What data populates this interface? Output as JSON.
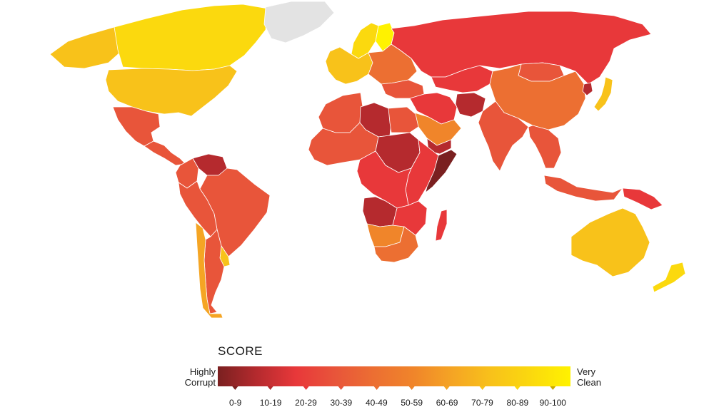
{
  "legend": {
    "title": "SCORE",
    "low_label": "Highly Corrupt",
    "high_label": "Very Clean",
    "gradient_colors": [
      "#7a2020",
      "#b52a2e",
      "#e8383a",
      "#e8553a",
      "#ec6f32",
      "#f0852a",
      "#f5a524",
      "#f8c21a",
      "#fbd90e",
      "#fff200"
    ],
    "bins": [
      {
        "label": "0-9",
        "color": "#7a2020"
      },
      {
        "label": "10-19",
        "color": "#b52a2e"
      },
      {
        "label": "20-29",
        "color": "#e8383a"
      },
      {
        "label": "30-39",
        "color": "#e8553a"
      },
      {
        "label": "40-49",
        "color": "#ec6f32"
      },
      {
        "label": "50-59",
        "color": "#f0852a"
      },
      {
        "label": "60-69",
        "color": "#f5a524"
      },
      {
        "label": "70-79",
        "color": "#f8c21a"
      },
      {
        "label": "80-89",
        "color": "#fbd90e"
      },
      {
        "label": "90-100",
        "color": "#fff200"
      }
    ]
  },
  "map": {
    "no_data_color": "#e3e3e3",
    "regions": [
      {
        "name": "canada",
        "bin": "80-89"
      },
      {
        "name": "alaska",
        "bin": "70-79"
      },
      {
        "name": "usa",
        "bin": "70-79"
      },
      {
        "name": "greenland",
        "bin": "no-data"
      },
      {
        "name": "mexico",
        "bin": "30-39"
      },
      {
        "name": "central-america",
        "bin": "30-39"
      },
      {
        "name": "venezuela",
        "bin": "10-19"
      },
      {
        "name": "colombia",
        "bin": "30-39"
      },
      {
        "name": "brazil",
        "bin": "30-39"
      },
      {
        "name": "peru-bolivia",
        "bin": "30-39"
      },
      {
        "name": "argentina",
        "bin": "30-39"
      },
      {
        "name": "chile",
        "bin": "60-69"
      },
      {
        "name": "uruguay",
        "bin": "70-79"
      },
      {
        "name": "western-europe",
        "bin": "70-79"
      },
      {
        "name": "scandinavia",
        "bin": "80-89"
      },
      {
        "name": "finland",
        "bin": "90-100"
      },
      {
        "name": "eastern-europe",
        "bin": "40-49"
      },
      {
        "name": "russia",
        "bin": "20-29"
      },
      {
        "name": "turkey",
        "bin": "30-39"
      },
      {
        "name": "middle-east",
        "bin": "20-29"
      },
      {
        "name": "saudi-arabia",
        "bin": "50-59"
      },
      {
        "name": "yemen",
        "bin": "10-19"
      },
      {
        "name": "afghanistan",
        "bin": "10-19"
      },
      {
        "name": "central-asia",
        "bin": "20-29"
      },
      {
        "name": "china",
        "bin": "40-49"
      },
      {
        "name": "mongolia",
        "bin": "30-39"
      },
      {
        "name": "india",
        "bin": "30-39"
      },
      {
        "name": "southeast-asia",
        "bin": "30-39"
      },
      {
        "name": "north-korea",
        "bin": "10-19"
      },
      {
        "name": "japan",
        "bin": "70-79"
      },
      {
        "name": "indonesia",
        "bin": "30-39"
      },
      {
        "name": "papua-new-guinea",
        "bin": "20-29"
      },
      {
        "name": "australia",
        "bin": "70-79"
      },
      {
        "name": "new-zealand",
        "bin": "80-89"
      },
      {
        "name": "north-africa",
        "bin": "30-39"
      },
      {
        "name": "libya",
        "bin": "10-19"
      },
      {
        "name": "sahel",
        "bin": "30-39"
      },
      {
        "name": "sudan-chad",
        "bin": "10-19"
      },
      {
        "name": "central-africa",
        "bin": "20-29"
      },
      {
        "name": "east-africa",
        "bin": "20-29"
      },
      {
        "name": "somalia",
        "bin": "0-9"
      },
      {
        "name": "angola",
        "bin": "10-19"
      },
      {
        "name": "namibia-botswana",
        "bin": "50-59"
      },
      {
        "name": "south-africa",
        "bin": "40-49"
      },
      {
        "name": "madagascar",
        "bin": "20-29"
      }
    ]
  }
}
